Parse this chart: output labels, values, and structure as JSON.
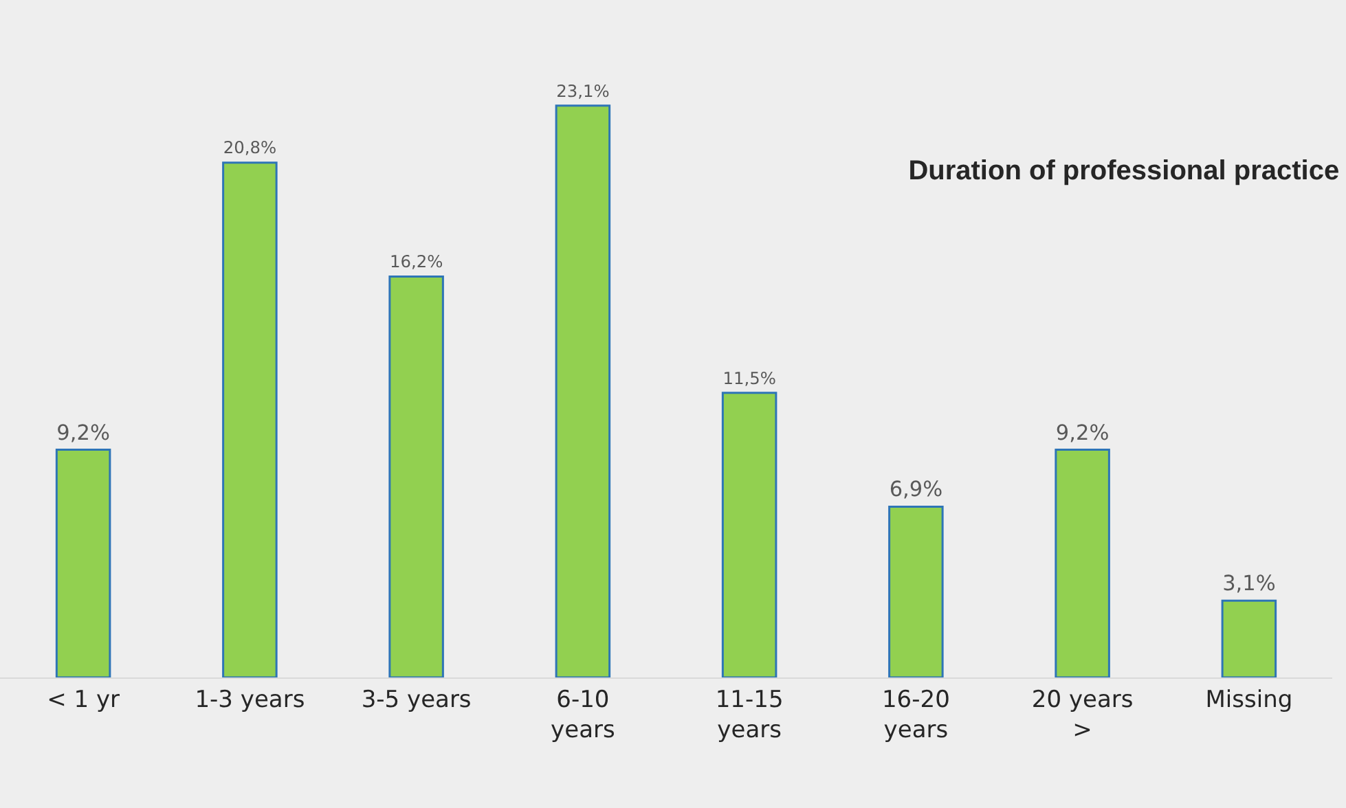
{
  "chart_data": {
    "type": "bar",
    "title": "Duration of professional practice",
    "categories": [
      "< 1 yr",
      "1-3 years",
      "3-5 years",
      "6-10\nyears",
      "11-15\nyears",
      "16-20\nyears",
      "20 years\n>",
      "Missing"
    ],
    "values": [
      9.2,
      20.8,
      16.2,
      23.1,
      11.5,
      6.9,
      9.2,
      3.1
    ],
    "value_labels": [
      "9,2%",
      "20,8%",
      "16,2%",
      "23,1%",
      "11,5%",
      "6,9%",
      "9,2%",
      "3,1%"
    ],
    "color": "#92d050",
    "tick_labels": "x",
    "grid": false,
    "legend": false
  }
}
